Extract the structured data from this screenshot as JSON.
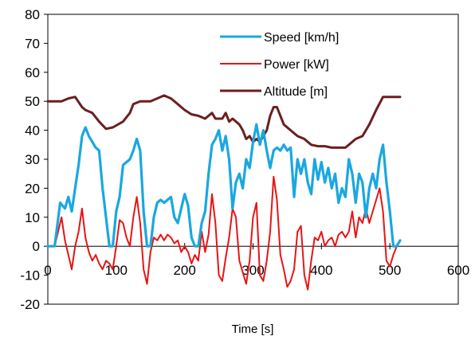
{
  "chart_data": {
    "type": "line",
    "title": "",
    "xlabel": "Time [s]",
    "ylabel": "",
    "xlim": [
      0,
      600
    ],
    "ylim": [
      -20,
      80
    ],
    "xticks": [
      0,
      100,
      200,
      300,
      400,
      500,
      600
    ],
    "yticks": [
      -20,
      -10,
      0,
      10,
      20,
      30,
      40,
      50,
      60,
      70,
      80
    ],
    "grid": false,
    "legend_position": "top-right",
    "series": [
      {
        "name": "Speed [km/h]",
        "color": "#1aa7e0",
        "points": [
          [
            0,
            0
          ],
          [
            10,
            0
          ],
          [
            18,
            15
          ],
          [
            25,
            13
          ],
          [
            30,
            17
          ],
          [
            35,
            12
          ],
          [
            40,
            20
          ],
          [
            45,
            28
          ],
          [
            50,
            38
          ],
          [
            55,
            41
          ],
          [
            60,
            38
          ],
          [
            70,
            34
          ],
          [
            75,
            33
          ],
          [
            80,
            20
          ],
          [
            85,
            10
          ],
          [
            90,
            0
          ],
          [
            95,
            0
          ],
          [
            100,
            12
          ],
          [
            105,
            17
          ],
          [
            110,
            28
          ],
          [
            115,
            29
          ],
          [
            120,
            30
          ],
          [
            125,
            33
          ],
          [
            130,
            37
          ],
          [
            135,
            33
          ],
          [
            140,
            12
          ],
          [
            145,
            0
          ],
          [
            150,
            0
          ],
          [
            155,
            10
          ],
          [
            160,
            15
          ],
          [
            165,
            16
          ],
          [
            170,
            15
          ],
          [
            175,
            16
          ],
          [
            180,
            17
          ],
          [
            185,
            10
          ],
          [
            190,
            8
          ],
          [
            195,
            13
          ],
          [
            200,
            18
          ],
          [
            205,
            14
          ],
          [
            210,
            3
          ],
          [
            215,
            0
          ],
          [
            220,
            0
          ],
          [
            225,
            8
          ],
          [
            230,
            12
          ],
          [
            235,
            25
          ],
          [
            240,
            35
          ],
          [
            245,
            37
          ],
          [
            250,
            40
          ],
          [
            255,
            33
          ],
          [
            260,
            38
          ],
          [
            265,
            30
          ],
          [
            270,
            13
          ],
          [
            275,
            22
          ],
          [
            280,
            25
          ],
          [
            285,
            20
          ],
          [
            290,
            30
          ],
          [
            295,
            27
          ],
          [
            300,
            36
          ],
          [
            305,
            42
          ],
          [
            310,
            35
          ],
          [
            315,
            40
          ],
          [
            320,
            33
          ],
          [
            325,
            27
          ],
          [
            330,
            33
          ],
          [
            335,
            34
          ],
          [
            340,
            33
          ],
          [
            345,
            35
          ],
          [
            350,
            33
          ],
          [
            355,
            34
          ],
          [
            360,
            17
          ],
          [
            365,
            30
          ],
          [
            370,
            25
          ],
          [
            375,
            30
          ],
          [
            380,
            22
          ],
          [
            385,
            18
          ],
          [
            390,
            30
          ],
          [
            395,
            23
          ],
          [
            400,
            29
          ],
          [
            405,
            22
          ],
          [
            410,
            27
          ],
          [
            415,
            20
          ],
          [
            420,
            25
          ],
          [
            425,
            15
          ],
          [
            430,
            20
          ],
          [
            435,
            17
          ],
          [
            440,
            30
          ],
          [
            445,
            25
          ],
          [
            450,
            15
          ],
          [
            455,
            25
          ],
          [
            460,
            22
          ],
          [
            465,
            10
          ],
          [
            470,
            20
          ],
          [
            475,
            25
          ],
          [
            480,
            20
          ],
          [
            485,
            30
          ],
          [
            490,
            35
          ],
          [
            495,
            22
          ],
          [
            500,
            12
          ],
          [
            505,
            0
          ],
          [
            510,
            0
          ],
          [
            515,
            2
          ]
        ]
      },
      {
        "name": "Power [kW]",
        "color": "#e81414",
        "points": [
          [
            0,
            0
          ],
          [
            10,
            0
          ],
          [
            15,
            5
          ],
          [
            20,
            10
          ],
          [
            25,
            2
          ],
          [
            30,
            -3
          ],
          [
            35,
            -8
          ],
          [
            40,
            0
          ],
          [
            45,
            5
          ],
          [
            50,
            13
          ],
          [
            55,
            3
          ],
          [
            60,
            -2
          ],
          [
            65,
            -5
          ],
          [
            70,
            -3
          ],
          [
            75,
            -6
          ],
          [
            80,
            -8
          ],
          [
            85,
            -5
          ],
          [
            90,
            -6
          ],
          [
            95,
            -8
          ],
          [
            100,
            0
          ],
          [
            105,
            9
          ],
          [
            110,
            8
          ],
          [
            115,
            3
          ],
          [
            120,
            0
          ],
          [
            125,
            10
          ],
          [
            130,
            17
          ],
          [
            135,
            8
          ],
          [
            140,
            -8
          ],
          [
            145,
            -13
          ],
          [
            150,
            -2
          ],
          [
            155,
            3
          ],
          [
            160,
            2
          ],
          [
            165,
            4
          ],
          [
            170,
            2
          ],
          [
            175,
            4
          ],
          [
            180,
            3
          ],
          [
            185,
            1
          ],
          [
            190,
            2
          ],
          [
            195,
            -2
          ],
          [
            200,
            0
          ],
          [
            205,
            -2
          ],
          [
            210,
            -6
          ],
          [
            215,
            -3
          ],
          [
            220,
            -5
          ],
          [
            225,
            5
          ],
          [
            230,
            -2
          ],
          [
            235,
            4
          ],
          [
            240,
            18
          ],
          [
            245,
            8
          ],
          [
            250,
            -10
          ],
          [
            255,
            -12
          ],
          [
            260,
            -4
          ],
          [
            265,
            3
          ],
          [
            270,
            13
          ],
          [
            275,
            10
          ],
          [
            280,
            -5
          ],
          [
            285,
            -9
          ],
          [
            290,
            -13
          ],
          [
            295,
            -5
          ],
          [
            300,
            10
          ],
          [
            305,
            15
          ],
          [
            310,
            -10
          ],
          [
            315,
            -12
          ],
          [
            320,
            -5
          ],
          [
            325,
            5
          ],
          [
            330,
            24
          ],
          [
            335,
            16
          ],
          [
            340,
            -3
          ],
          [
            345,
            -8
          ],
          [
            350,
            -14
          ],
          [
            355,
            -12
          ],
          [
            360,
            -8
          ],
          [
            365,
            5
          ],
          [
            370,
            7
          ],
          [
            375,
            -10
          ],
          [
            380,
            -15
          ],
          [
            385,
            -5
          ],
          [
            390,
            3
          ],
          [
            395,
            2
          ],
          [
            400,
            5
          ],
          [
            405,
            0
          ],
          [
            410,
            2
          ],
          [
            415,
            3
          ],
          [
            420,
            0
          ],
          [
            425,
            4
          ],
          [
            430,
            5
          ],
          [
            435,
            3
          ],
          [
            440,
            5
          ],
          [
            445,
            12
          ],
          [
            450,
            3
          ],
          [
            455,
            10
          ],
          [
            460,
            8
          ],
          [
            465,
            13
          ],
          [
            470,
            8
          ],
          [
            475,
            12
          ],
          [
            480,
            16
          ],
          [
            485,
            20
          ],
          [
            490,
            12
          ],
          [
            495,
            -5
          ],
          [
            500,
            -7
          ],
          [
            505,
            -3
          ],
          [
            510,
            0
          ]
        ]
      },
      {
        "name": "Altitude [m]",
        "color": "#6b1f1f",
        "points": [
          [
            0,
            50
          ],
          [
            20,
            50
          ],
          [
            30,
            51
          ],
          [
            40,
            51.5
          ],
          [
            50,
            48
          ],
          [
            55,
            47
          ],
          [
            65,
            46
          ],
          [
            75,
            43
          ],
          [
            85,
            40.5
          ],
          [
            95,
            41
          ],
          [
            110,
            43
          ],
          [
            120,
            46
          ],
          [
            125,
            49
          ],
          [
            135,
            50
          ],
          [
            150,
            50
          ],
          [
            160,
            51
          ],
          [
            170,
            52
          ],
          [
            180,
            51
          ],
          [
            190,
            49
          ],
          [
            200,
            47
          ],
          [
            210,
            45.5
          ],
          [
            220,
            45
          ],
          [
            230,
            44
          ],
          [
            240,
            46
          ],
          [
            245,
            44
          ],
          [
            255,
            44
          ],
          [
            260,
            46
          ],
          [
            265,
            43
          ],
          [
            270,
            44
          ],
          [
            280,
            42
          ],
          [
            285,
            40
          ],
          [
            290,
            37
          ],
          [
            295,
            38
          ],
          [
            300,
            36
          ],
          [
            305,
            37
          ],
          [
            310,
            36
          ],
          [
            315,
            38
          ],
          [
            320,
            40
          ],
          [
            325,
            45
          ],
          [
            330,
            48
          ],
          [
            335,
            48
          ],
          [
            340,
            45
          ],
          [
            345,
            42
          ],
          [
            355,
            40
          ],
          [
            365,
            38
          ],
          [
            375,
            37
          ],
          [
            385,
            35
          ],
          [
            395,
            34.5
          ],
          [
            405,
            34.5
          ],
          [
            415,
            34
          ],
          [
            425,
            34
          ],
          [
            435,
            34
          ],
          [
            440,
            35
          ],
          [
            450,
            37
          ],
          [
            460,
            38
          ],
          [
            470,
            42
          ],
          [
            480,
            47
          ],
          [
            490,
            51.5
          ],
          [
            500,
            51.5
          ],
          [
            515,
            51.5
          ]
        ]
      }
    ]
  }
}
